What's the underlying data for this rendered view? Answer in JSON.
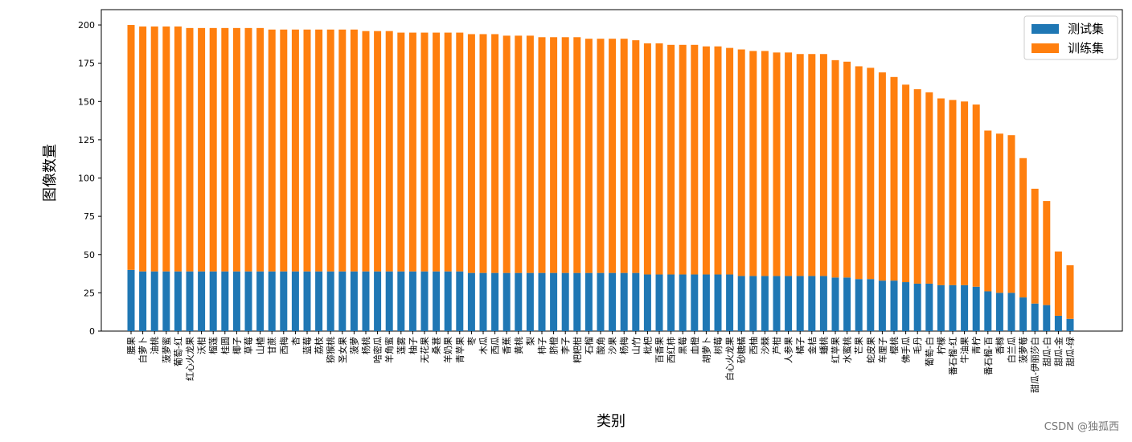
{
  "chart_data": {
    "type": "stacked_bar",
    "x_label": "类别",
    "y_label": "图像数量",
    "categories": [
      "腰果",
      "白萝卜",
      "油桃",
      "菠萝蜜",
      "葡萄-红",
      "红心火龙果",
      "沃柑",
      "榴莲",
      "桂圆",
      "椰子",
      "草莓",
      "山楂",
      "甘蔗",
      "西梅",
      "杏",
      "蓝莓",
      "荔枝",
      "猕猴桃",
      "圣女果",
      "菠萝",
      "杨桃",
      "哈密瓜",
      "羊角蜜",
      "莲雾",
      "柚子",
      "无花果",
      "桑葚",
      "羊奶果",
      "青苹果",
      "枣",
      "木瓜",
      "西瓜",
      "香蕉",
      "黄桃",
      "梨",
      "柿子",
      "脐橙",
      "李子",
      "粑粑柑",
      "石榴",
      "酸角",
      "沙果",
      "杨梅",
      "山竹",
      "枇杷",
      "百香果",
      "西红柿",
      "黑莓",
      "血橙",
      "胡萝卜",
      "树莓",
      "白心火龙果",
      "砂糖橘",
      "西柚",
      "沙棘",
      "芦柑",
      "人参果",
      "橘子",
      "金桔",
      "蟠桃",
      "红苹果",
      "水蜜桃",
      "芒果",
      "蛇皮果",
      "车厘子",
      "樱桃",
      "佛手瓜",
      "毛丹",
      "葡萄-白",
      "柠檬",
      "番石榴-红",
      "牛油果",
      "青柠",
      "番石榴-百",
      "香橼",
      "白兰瓜",
      "菠萝莓",
      "甜瓜-伊丽莎白",
      "甜瓜-白",
      "甜瓜-金",
      "甜瓜-绿"
    ],
    "series": [
      {
        "name": "测试集",
        "color": "#1f77b4",
        "values": [
          40,
          39,
          39,
          39,
          39,
          39,
          39,
          39,
          39,
          39,
          39,
          39,
          39,
          39,
          39,
          39,
          39,
          39,
          39,
          39,
          39,
          39,
          39,
          39,
          39,
          39,
          39,
          39,
          39,
          38,
          38,
          38,
          38,
          38,
          38,
          38,
          38,
          38,
          38,
          38,
          38,
          38,
          38,
          38,
          37,
          37,
          37,
          37,
          37,
          37,
          37,
          37,
          36,
          36,
          36,
          36,
          36,
          36,
          36,
          36,
          35,
          35,
          34,
          34,
          33,
          33,
          32,
          31,
          31,
          30,
          30,
          30,
          29,
          26,
          25,
          25,
          22,
          18,
          17,
          10,
          8
        ]
      },
      {
        "name": "训练集",
        "color": "#ff7f0e",
        "values": [
          160,
          160,
          160,
          160,
          160,
          159,
          159,
          159,
          159,
          159,
          159,
          159,
          158,
          158,
          158,
          158,
          158,
          158,
          158,
          158,
          157,
          157,
          157,
          156,
          156,
          156,
          156,
          156,
          156,
          156,
          156,
          156,
          155,
          155,
          155,
          154,
          154,
          154,
          154,
          153,
          153,
          153,
          153,
          152,
          151,
          151,
          150,
          150,
          150,
          149,
          149,
          148,
          148,
          147,
          147,
          146,
          146,
          145,
          145,
          145,
          142,
          141,
          139,
          138,
          136,
          133,
          129,
          127,
          125,
          122,
          121,
          120,
          119,
          105,
          104,
          103,
          91,
          75,
          68,
          42,
          35
        ]
      }
    ],
    "ylim": [
      0,
      210
    ],
    "yticks": [
      0,
      25,
      50,
      75,
      100,
      125,
      150,
      175,
      200
    ],
    "legend": "upper right"
  },
  "watermark": "CSDN @独孤西"
}
